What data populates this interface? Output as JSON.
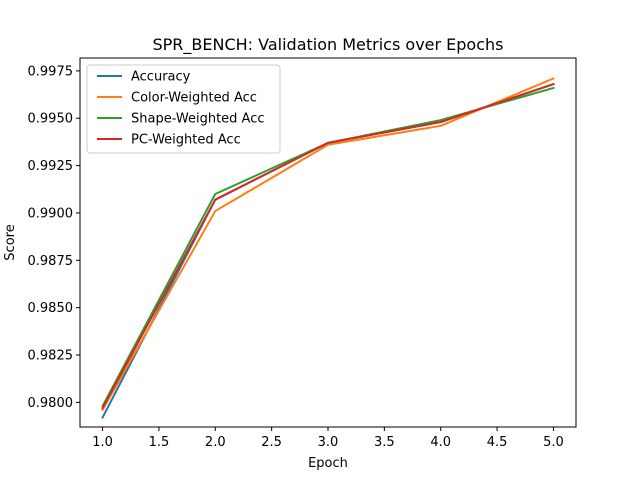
{
  "chart_data": {
    "type": "line",
    "title": "SPR_BENCH: Validation Metrics over Epochs",
    "xlabel": "Epoch",
    "ylabel": "Score",
    "x": [
      1.0,
      2.0,
      3.0,
      4.0,
      5.0
    ],
    "xlim": [
      0.8,
      5.2
    ],
    "ylim": [
      0.9787,
      0.99818
    ],
    "x_ticks": [
      1.0,
      1.5,
      2.0,
      2.5,
      3.0,
      3.5,
      4.0,
      4.5,
      5.0
    ],
    "x_tick_labels": [
      "1.0",
      "1.5",
      "2.0",
      "2.5",
      "3.0",
      "3.5",
      "4.0",
      "4.5",
      "5.0"
    ],
    "y_ticks": [
      0.98,
      0.9825,
      0.985,
      0.9875,
      0.99,
      0.9925,
      0.995,
      0.9975
    ],
    "y_tick_labels": [
      "0.9800",
      "0.9825",
      "0.9850",
      "0.9875",
      "0.9900",
      "0.9925",
      "0.9950",
      "0.9975"
    ],
    "grid": false,
    "legend_position": "top-left",
    "series": [
      {
        "name": "Accuracy",
        "color": "#1f77b4",
        "values": [
          0.9792,
          0.9907,
          0.9937,
          0.9948,
          0.9968
        ]
      },
      {
        "name": "Color-Weighted Acc",
        "color": "#ff7f0e",
        "values": [
          0.9796,
          0.9901,
          0.9936,
          0.9946,
          0.9971
        ]
      },
      {
        "name": "Shape-Weighted Acc",
        "color": "#2ca02c",
        "values": [
          0.9798,
          0.991,
          0.9937,
          0.9949,
          0.9966
        ]
      },
      {
        "name": "PC-Weighted Acc",
        "color": "#d62728",
        "values": [
          0.9797,
          0.9907,
          0.9937,
          0.9948,
          0.9968
        ]
      }
    ]
  }
}
